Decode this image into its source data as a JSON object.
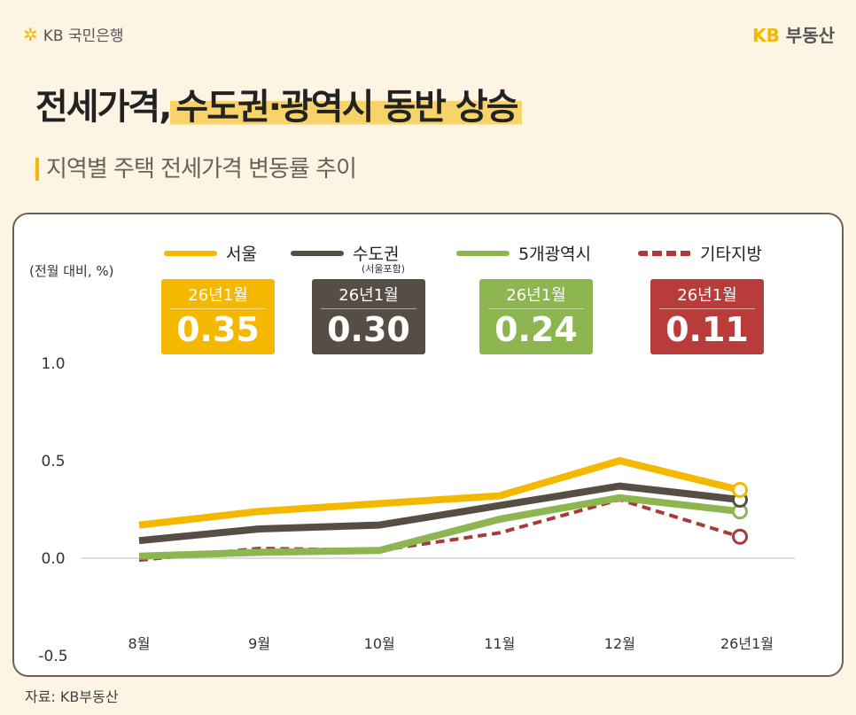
{
  "header": {
    "bank_logo": "KB 국민은행",
    "brand_prefix": "KB",
    "brand_name": "부동산"
  },
  "title": {
    "part1": "전세가격,",
    "part2": "수도권·광역시 동반 상승"
  },
  "subtitle": "지역별 주택 전세가격 변동률 추이",
  "source": "자료: KB부동산",
  "chart_data": {
    "type": "line",
    "title": "",
    "ylabel": "(전월 대비, %)",
    "xlabel": "",
    "ylim": [
      -0.5,
      1.0
    ],
    "yticks": [
      "1.0",
      "0.5",
      "0.0",
      "-0.5"
    ],
    "categories": [
      "8월",
      "9월",
      "10월",
      "11월",
      "12월",
      "26년1월"
    ],
    "grid": false,
    "legend": "top",
    "series": [
      {
        "name": "서울",
        "color": "#f5b800",
        "dash": false,
        "values": [
          0.17,
          0.24,
          0.28,
          0.32,
          0.5,
          0.35
        ],
        "badge_month": "26년1월",
        "badge_value": "0.35"
      },
      {
        "name": "수도권",
        "note": "(서울포함)",
        "color": "#564d45",
        "dash": false,
        "values": [
          0.09,
          0.15,
          0.17,
          0.27,
          0.37,
          0.3
        ],
        "badge_month": "26년1월",
        "badge_value": "0.30"
      },
      {
        "name": "5개광역시",
        "color": "#8db550",
        "dash": false,
        "values": [
          0.01,
          0.03,
          0.04,
          0.2,
          0.31,
          0.24
        ],
        "badge_month": "26년1월",
        "badge_value": "0.24"
      },
      {
        "name": "기타지방",
        "color": "#a83a38",
        "dash": true,
        "values": [
          -0.01,
          0.05,
          0.04,
          0.13,
          0.3,
          0.11
        ],
        "badge_month": "26년1월",
        "badge_value": "0.11"
      }
    ]
  }
}
